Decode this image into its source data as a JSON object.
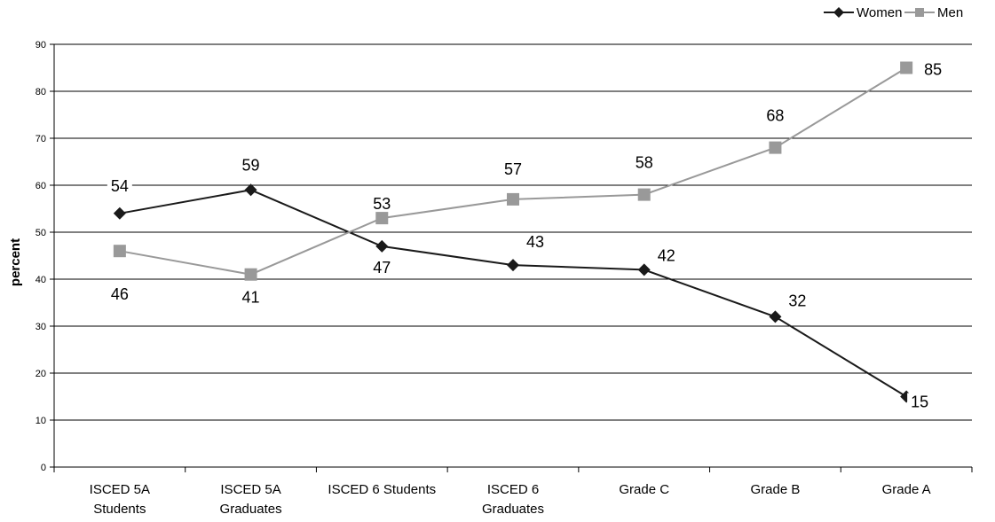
{
  "chart_data": {
    "type": "line",
    "categories": [
      [
        "ISCED 5A",
        "Students"
      ],
      [
        "ISCED 5A",
        "Graduates"
      ],
      [
        "ISCED 6  Students"
      ],
      [
        "ISCED 6",
        "Graduates"
      ],
      [
        "Grade C"
      ],
      [
        "Grade B"
      ],
      [
        "Grade A"
      ]
    ],
    "series": [
      {
        "name": "Women",
        "values": [
          54,
          59,
          47,
          43,
          42,
          32,
          15
        ],
        "color": "#1a1a1a",
        "marker": "diamond"
      },
      {
        "name": "Men",
        "values": [
          46,
          41,
          53,
          57,
          58,
          68,
          85
        ],
        "color": "#999999",
        "marker": "square"
      }
    ],
    "ylabel": "percent",
    "ylim": [
      0,
      90
    ],
    "yticks": [
      0,
      10,
      20,
      30,
      40,
      50,
      60,
      70,
      80,
      90
    ],
    "grid": true,
    "legend_position": "top-right"
  }
}
